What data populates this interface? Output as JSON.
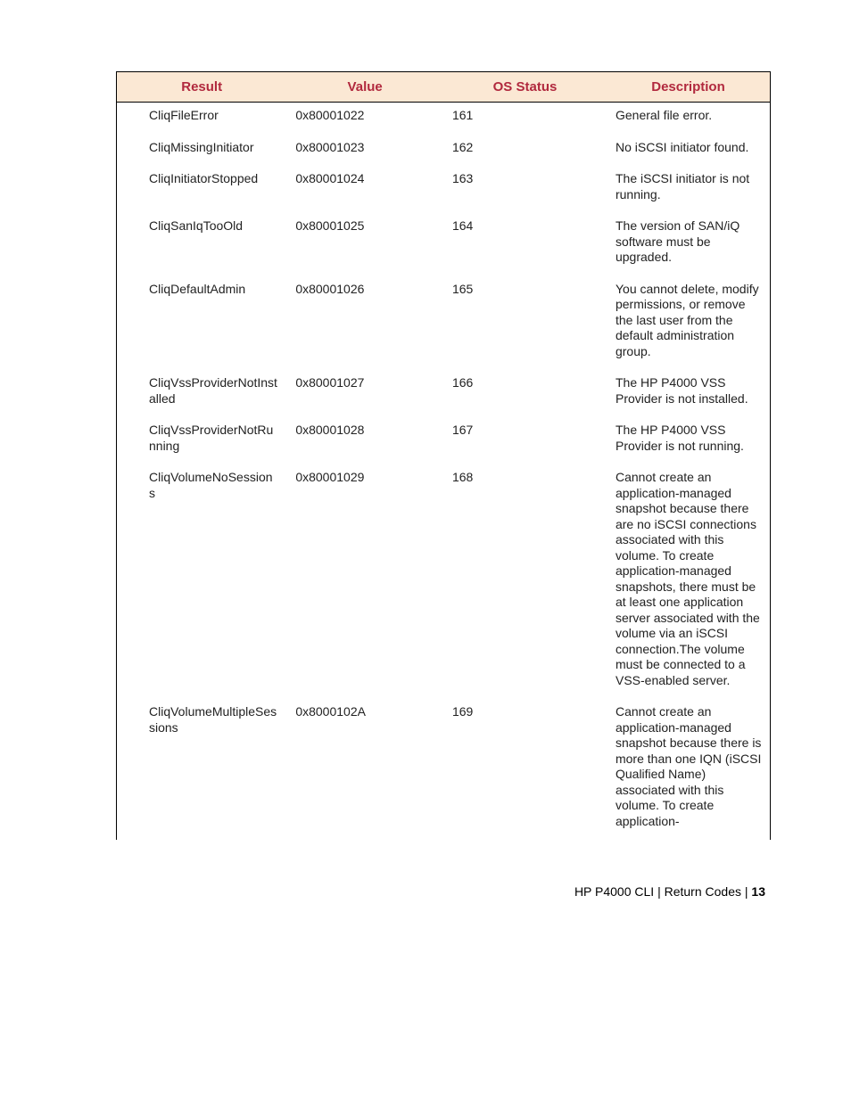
{
  "table": {
    "headers": {
      "result": "Result",
      "value": "Value",
      "os_status": "OS Status",
      "description": "Description"
    },
    "header_bg": "#fbe8d4",
    "header_color": "#b1293e",
    "border_color": "#000000",
    "font_family": "Futura",
    "body_fontsize": 14,
    "header_fontsize": 15,
    "rows": [
      {
        "result": "CliqFileError",
        "value": "0x80001022",
        "os_status": "161",
        "description": "General file error."
      },
      {
        "result": "CliqMissingInitiator",
        "value": "0x80001023",
        "os_status": "162",
        "description": "No iSCSI initiator found."
      },
      {
        "result": "CliqInitiatorStopped",
        "value": "0x80001024",
        "os_status": "163",
        "description": "The iSCSI initiator is not running."
      },
      {
        "result": "CliqSanIqTooOld",
        "value": "0x80001025",
        "os_status": "164",
        "description": "The version of SAN/iQ software must be upgraded."
      },
      {
        "result": "CliqDefaultAdmin",
        "value": "0x80001026",
        "os_status": "165",
        "description": "You cannot delete, modify permissions, or remove the last user from the default administration group."
      },
      {
        "result": "CliqVssProviderNotInstalled",
        "value": "0x80001027",
        "os_status": "166",
        "description": "The HP P4000 VSS Provider is not installed."
      },
      {
        "result": "CliqVssProviderNotRunning",
        "value": "0x80001028",
        "os_status": "167",
        "description": "The HP P4000 VSS Provider is not running."
      },
      {
        "result": "CliqVolumeNoSessions",
        "value": "0x80001029",
        "os_status": "168",
        "description": "Cannot create an application-managed snapshot because there are no iSCSI connections associated with this volume. To create application-managed snapshots, there must be at least one application server associated with the volume via an iSCSI connection.The volume must be connected to a VSS-enabled server."
      },
      {
        "result": "CliqVolumeMultipleSessions",
        "value": "0x8000102A",
        "os_status": "169",
        "description": "Cannot create an application-managed snapshot because there is more than one IQN (iSCSI Qualified Name) associated with this volume. To create application-"
      }
    ]
  },
  "footer": {
    "left": "HP P4000 CLI",
    "sep": " | ",
    "mid": "Return Codes",
    "page": "13"
  }
}
